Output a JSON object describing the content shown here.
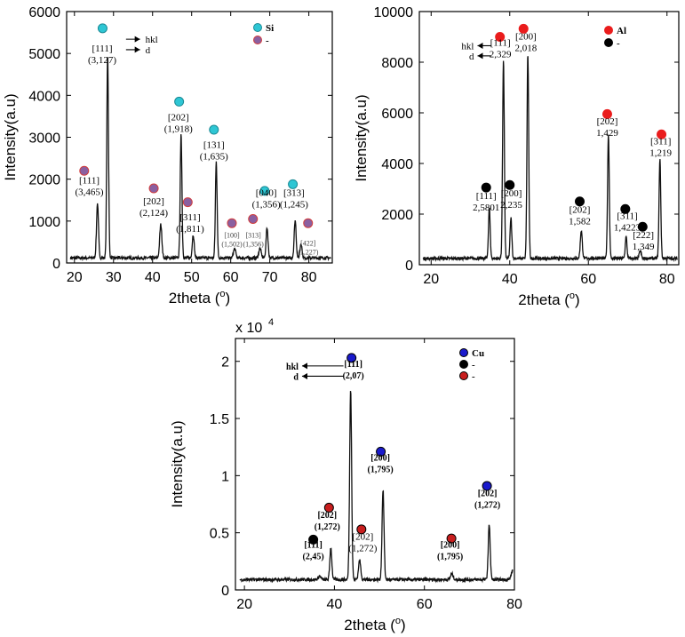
{
  "chart_data": [
    {
      "type": "line",
      "element": "Si",
      "xlabel": "2theta",
      "xunit": "o",
      "ylabel": "Intensity(a.u)",
      "xlim": [
        18,
        86
      ],
      "ylim": [
        0,
        6000
      ],
      "xticks": [
        20,
        30,
        40,
        50,
        60,
        70,
        80
      ],
      "yticks": [
        0,
        1000,
        2000,
        3000,
        4000,
        5000,
        6000
      ],
      "baseline": 120,
      "peaks": [
        {
          "x": 25.9,
          "y": 1300,
          "w": 0.25
        },
        {
          "x": 28.5,
          "y": 4850,
          "w": 0.22
        },
        {
          "x": 42.1,
          "y": 800,
          "w": 0.28
        },
        {
          "x": 47.3,
          "y": 2950,
          "w": 0.22
        },
        {
          "x": 50.4,
          "y": 550,
          "w": 0.25
        },
        {
          "x": 56.3,
          "y": 2300,
          "w": 0.22
        },
        {
          "x": 61.0,
          "y": 220,
          "w": 0.3
        },
        {
          "x": 67.5,
          "y": 230,
          "w": 0.3
        },
        {
          "x": 69.3,
          "y": 720,
          "w": 0.25
        },
        {
          "x": 76.5,
          "y": 900,
          "w": 0.25
        },
        {
          "x": 78.0,
          "y": 350,
          "w": 0.25
        }
      ],
      "markers": [
        {
          "x": 22.5,
          "y": 2200,
          "color": "#8a5fa0",
          "ring": "#d23c3c"
        },
        {
          "x": 27.2,
          "y": 5600,
          "color": "#2ec6d4",
          "ring": "#1a8a95"
        },
        {
          "x": 40.3,
          "y": 1780,
          "color": "#8a5fa0",
          "ring": "#d23c3c"
        },
        {
          "x": 46.8,
          "y": 3850,
          "color": "#2ec6d4",
          "ring": "#1a8a95"
        },
        {
          "x": 49.0,
          "y": 1450,
          "color": "#8a5fa0",
          "ring": "#d23c3c"
        },
        {
          "x": 55.7,
          "y": 3180,
          "color": "#2ec6d4",
          "ring": "#1a8a95"
        },
        {
          "x": 60.3,
          "y": 950,
          "color": "#8a5fa0",
          "ring": "#d23c3c"
        },
        {
          "x": 65.7,
          "y": 1050,
          "color": "#8a5fa0",
          "ring": "#d23c3c"
        },
        {
          "x": 68.7,
          "y": 1720,
          "color": "#2ec6d4",
          "ring": "#1a8a95"
        },
        {
          "x": 75.9,
          "y": 1880,
          "color": "#2ec6d4",
          "ring": "#1a8a95"
        },
        {
          "x": 79.8,
          "y": 950,
          "color": "#8a5fa0",
          "ring": "#d23c3c"
        }
      ],
      "labels": [
        {
          "x": 23.8,
          "y": 1900,
          "lines": [
            "[111]",
            "(3,465)"
          ],
          "style": "n"
        },
        {
          "x": 27.1,
          "y": 5050,
          "lines": [
            "[111]",
            "(3,127)"
          ],
          "style": "n"
        },
        {
          "x": 40.3,
          "y": 1400,
          "lines": [
            "[202]",
            "(2,124)"
          ],
          "style": "n"
        },
        {
          "x": 46.6,
          "y": 3400,
          "lines": [
            "[202]",
            "(1,918)"
          ],
          "style": "n"
        },
        {
          "x": 49.6,
          "y": 1020,
          "lines": [
            "[311]",
            "(1,811)"
          ],
          "style": "s"
        },
        {
          "x": 55.7,
          "y": 2750,
          "lines": [
            "[131]",
            "(1,635)"
          ],
          "style": "n"
        },
        {
          "x": 60.3,
          "y": 600,
          "lines": [
            "[100]",
            "(1,502)"
          ],
          "style": "xs"
        },
        {
          "x": 65.8,
          "y": 600,
          "lines": [
            "[313]",
            "(1,356)"
          ],
          "style": "xs"
        },
        {
          "x": 69.1,
          "y": 1600,
          "lines": [
            "[040]",
            "(1,356)"
          ],
          "style": "n"
        },
        {
          "x": 76.2,
          "y": 1600,
          "lines": [
            "[313]",
            "(1,245)"
          ],
          "style": "n"
        },
        {
          "x": 79.8,
          "y": 410,
          "lines": [
            "[422]",
            "(1,227)"
          ],
          "style": "xs"
        }
      ],
      "arrows": [
        {
          "x1": 33.2,
          "y1": 5340,
          "x2": 36.8,
          "y2": 5340,
          "text": "hkl"
        },
        {
          "x1": 33.2,
          "y1": 5090,
          "x2": 36.8,
          "y2": 5090,
          "text": "d"
        }
      ],
      "legend": [
        {
          "label": "Si",
          "color": "#2ec6d4",
          "ring": "#1a8a95"
        },
        {
          "label": "-",
          "color": "#8a5fa0",
          "ring": "#d23c3c"
        }
      ]
    },
    {
      "type": "line",
      "element": "Al",
      "xlabel": "2theta",
      "xunit": "o",
      "ylabel": "Intensity(a.u)",
      "xlim": [
        17,
        83
      ],
      "ylim": [
        0,
        10000
      ],
      "xticks": [
        20,
        40,
        60,
        80
      ],
      "yticks": [
        0,
        2000,
        4000,
        6000,
        8000,
        10000
      ],
      "baseline": 250,
      "peaks": [
        {
          "x": 34.8,
          "y": 2000,
          "w": 0.22
        },
        {
          "x": 38.4,
          "y": 7850,
          "w": 0.22
        },
        {
          "x": 40.3,
          "y": 1600,
          "w": 0.22
        },
        {
          "x": 44.6,
          "y": 8050,
          "w": 0.22
        },
        {
          "x": 58.2,
          "y": 1100,
          "w": 0.25
        },
        {
          "x": 65.1,
          "y": 4850,
          "w": 0.22
        },
        {
          "x": 69.6,
          "y": 850,
          "w": 0.22
        },
        {
          "x": 73.2,
          "y": 300,
          "w": 0.25
        },
        {
          "x": 78.2,
          "y": 3900,
          "w": 0.22
        }
      ],
      "markers": [
        {
          "x": 34.0,
          "y": 3050,
          "color": "#000000",
          "ring": "#000000"
        },
        {
          "x": 37.5,
          "y": 9000,
          "color": "#ea1c1c",
          "ring": "#ea1c1c"
        },
        {
          "x": 40.0,
          "y": 3150,
          "color": "#000000",
          "ring": "#000000"
        },
        {
          "x": 43.5,
          "y": 9320,
          "color": "#ea1c1c",
          "ring": "#ea1c1c"
        },
        {
          "x": 57.8,
          "y": 2500,
          "color": "#000000",
          "ring": "#000000"
        },
        {
          "x": 64.8,
          "y": 5950,
          "color": "#ea1c1c",
          "ring": "#ea1c1c"
        },
        {
          "x": 69.4,
          "y": 2200,
          "color": "#000000",
          "ring": "#000000"
        },
        {
          "x": 73.8,
          "y": 1500,
          "color": "#000000",
          "ring": "#000000"
        },
        {
          "x": 78.6,
          "y": 5150,
          "color": "#ea1c1c",
          "ring": "#ea1c1c"
        }
      ],
      "labels": [
        {
          "x": 34.0,
          "y": 2600,
          "lines": [
            "[111]",
            "2,5801"
          ],
          "style": "n"
        },
        {
          "x": 37.6,
          "y": 8650,
          "lines": [
            "[111]",
            "2,329"
          ],
          "style": "n"
        },
        {
          "x": 40.4,
          "y": 2700,
          "lines": [
            "[200]",
            "2,235"
          ],
          "style": "s"
        },
        {
          "x": 44.1,
          "y": 8900,
          "lines": [
            "[200]",
            "2,018"
          ],
          "style": "n"
        },
        {
          "x": 57.8,
          "y": 2050,
          "lines": [
            "[202]",
            "1,582"
          ],
          "style": "n"
        },
        {
          "x": 64.8,
          "y": 5550,
          "lines": [
            "[202]",
            "1,429"
          ],
          "style": "n"
        },
        {
          "x": 69.9,
          "y": 1800,
          "lines": [
            "[311]",
            "1,4223"
          ],
          "style": "s"
        },
        {
          "x": 74.0,
          "y": 1050,
          "lines": [
            "[222]",
            "1,349"
          ],
          "style": "n"
        },
        {
          "x": 78.4,
          "y": 4750,
          "lines": [
            "[311]",
            "1,219"
          ],
          "style": "n"
        }
      ],
      "arrows": [
        {
          "x1": 35.3,
          "y1": 8650,
          "x2": 31.8,
          "y2": 8650,
          "text": "hkl"
        },
        {
          "x1": 35.3,
          "y1": 8250,
          "x2": 31.8,
          "y2": 8250,
          "text": "d"
        }
      ],
      "legend": [
        {
          "label": "Al",
          "color": "#ea1c1c",
          "ring": "#ea1c1c"
        },
        {
          "label": "-",
          "color": "#000000",
          "ring": "#000000"
        }
      ]
    },
    {
      "type": "line",
      "element": "Cu",
      "xlabel": "2theta",
      "xunit": "o",
      "ylabel": "Intensity(a.u)",
      "yscale_label": "x 10",
      "yscale_exp": "4",
      "xlim": [
        18,
        80
      ],
      "ylim": [
        0,
        2.2
      ],
      "xticks": [
        20,
        40,
        60,
        80
      ],
      "yticks": [
        0,
        0.5,
        1,
        1.5,
        2
      ],
      "ytick_labels": [
        "0",
        "0.5",
        "1",
        "1.5",
        "2"
      ],
      "baseline": 0.09,
      "peaks": [
        {
          "x": 36.7,
          "y": 0.03,
          "w": 0.3
        },
        {
          "x": 39.2,
          "y": 0.28,
          "w": 0.22
        },
        {
          "x": 43.6,
          "y": 1.67,
          "w": 0.22
        },
        {
          "x": 45.6,
          "y": 0.17,
          "w": 0.25
        },
        {
          "x": 50.8,
          "y": 0.78,
          "w": 0.22
        },
        {
          "x": 66.1,
          "y": 0.05,
          "w": 0.3
        },
        {
          "x": 74.4,
          "y": 0.48,
          "w": 0.22
        },
        {
          "x": 79.6,
          "y": 0.08,
          "w": 0.3
        }
      ],
      "markers": [
        {
          "x": 35.3,
          "y": 0.44,
          "color": "#000000",
          "ring": "#000000"
        },
        {
          "x": 38.8,
          "y": 0.72,
          "color": "#c81e1e",
          "ring": "#000000"
        },
        {
          "x": 43.8,
          "y": 2.03,
          "color": "#1a1acc",
          "ring": "#000000"
        },
        {
          "x": 46.0,
          "y": 0.53,
          "color": "#c81e1e",
          "ring": "#000000"
        },
        {
          "x": 50.3,
          "y": 1.21,
          "color": "#1a1acc",
          "ring": "#000000"
        },
        {
          "x": 66.0,
          "y": 0.45,
          "color": "#c81e1e",
          "ring": "#000000"
        },
        {
          "x": 73.9,
          "y": 0.91,
          "color": "#1a1acc",
          "ring": "#000000"
        }
      ],
      "labels": [
        {
          "x": 35.3,
          "y": 0.37,
          "lines": [
            "[111]",
            "(2,45)"
          ],
          "style": "b"
        },
        {
          "x": 38.4,
          "y": 0.63,
          "lines": [
            "[202]",
            "(1,272)"
          ],
          "style": "b"
        },
        {
          "x": 44.2,
          "y": 1.95,
          "lines": [
            "[111]",
            "(2,07)"
          ],
          "style": "b"
        },
        {
          "x": 46.3,
          "y": 0.44,
          "lines": [
            "[202]",
            "(1,272)"
          ],
          "style": "s"
        },
        {
          "x": 50.2,
          "y": 1.13,
          "lines": [
            "[200]",
            "(1,795)"
          ],
          "style": "b"
        },
        {
          "x": 65.7,
          "y": 0.37,
          "lines": [
            "[200]",
            "(1,795)"
          ],
          "style": "b"
        },
        {
          "x": 74.0,
          "y": 0.82,
          "lines": [
            "[202]",
            "(1,272)"
          ],
          "style": "b"
        }
      ],
      "arrows": [
        {
          "x1": 42.0,
          "y1": 1.96,
          "x2": 32.8,
          "y2": 1.96,
          "text": "hkl"
        },
        {
          "x1": 42.0,
          "y1": 1.87,
          "x2": 32.8,
          "y2": 1.87,
          "text": "d"
        }
      ],
      "legend": [
        {
          "label": "Cu",
          "color": "#1a1acc",
          "ring": "#000000"
        },
        {
          "label": "-",
          "color": "#000000",
          "ring": "#000000"
        },
        {
          "label": "-",
          "color": "#c81e1e",
          "ring": "#000000"
        }
      ]
    }
  ]
}
